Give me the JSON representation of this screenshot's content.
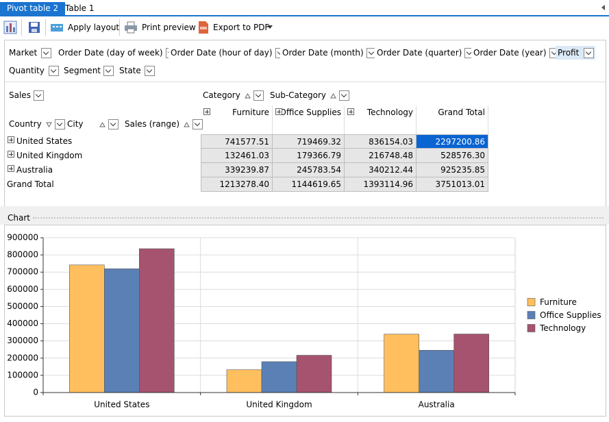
{
  "tabs": [
    "Pivot table 2",
    "Table 1"
  ],
  "toolbar": {
    "apply_layout": "Apply layout",
    "print_preview": "Print preview",
    "export_pdf": "Export to PDF"
  },
  "filter_fields": [
    "Market",
    "Order Date (day of week)",
    "Order Date (hour of day)",
    "Order Date (month)",
    "Order Date (quarter)",
    "Order Date (year)",
    "Profit",
    "Quantity",
    "Segment",
    "State"
  ],
  "pivot": {
    "data_field": "Sales",
    "column_fields": [
      "Category",
      "Sub-Category"
    ],
    "row_fields": [
      "Country",
      "City",
      "Sales (range)"
    ],
    "column_headers": [
      "Furniture",
      "Office Supplies",
      "Technology",
      "Grand Total"
    ],
    "rows": [
      {
        "label": "United States",
        "cells": [
          "741577.51",
          "719469.32",
          "836154.03",
          "2297200.86"
        ]
      },
      {
        "label": "United Kingdom",
        "cells": [
          "132461.03",
          "179366.79",
          "216748.48",
          "528576.30"
        ]
      },
      {
        "label": "Australia",
        "cells": [
          "339239.87",
          "245783.54",
          "340212.44",
          "925235.85"
        ]
      },
      {
        "label": "Grand Total",
        "cells": [
          "1213278.40",
          "1144619.65",
          "1393114.96",
          "3751013.01"
        ]
      }
    ]
  },
  "chart_panel_title": "Chart",
  "chart_data": {
    "type": "bar",
    "categories": [
      "United States",
      "United Kingdom",
      "Australia"
    ],
    "series": [
      {
        "name": "Furniture",
        "color": "#ffbf5e",
        "values": [
          741577.51,
          132461.03,
          339239.87
        ]
      },
      {
        "name": "Office Supplies",
        "color": "#5b80b5",
        "values": [
          719469.32,
          179366.79,
          245783.54
        ]
      },
      {
        "name": "Technology",
        "color": "#a5536f",
        "values": [
          836154.03,
          216748.48,
          340212.44
        ]
      }
    ],
    "ylim": [
      0,
      900000
    ],
    "yticks": [
      0,
      100000,
      200000,
      300000,
      400000,
      500000,
      600000,
      700000,
      800000,
      900000
    ],
    "grid": true,
    "legend": "right"
  }
}
